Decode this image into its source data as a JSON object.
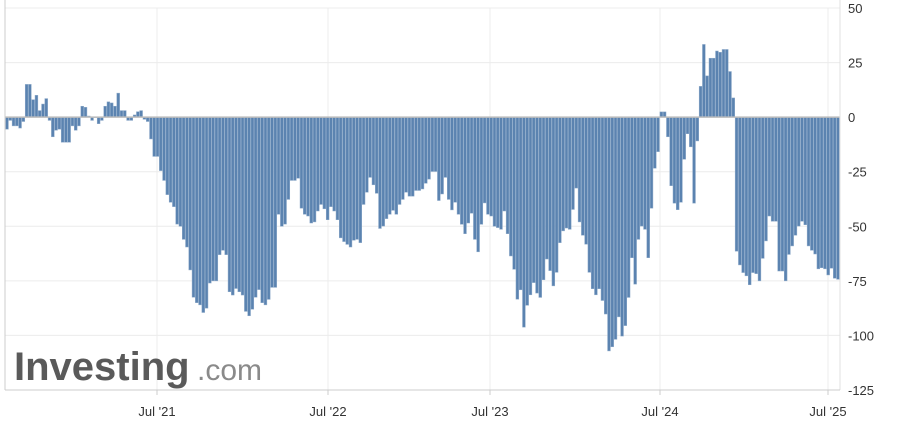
{
  "chart_data": {
    "type": "bar",
    "title": "",
    "xlabel": "",
    "ylabel": "",
    "ylim": [
      -125,
      50
    ],
    "y_ticks": [
      50,
      25,
      0,
      -25,
      -50,
      -75,
      -100,
      -125
    ],
    "x_tick_labels": [
      "Jul '21",
      "Jul '22",
      "Jul '23",
      "Jul '24",
      "Jul '25"
    ],
    "grid": true,
    "y_axis_position": "right",
    "bar_color": "#5b83b0",
    "bar_edge_color": "#8fabca",
    "values": [
      -5.5,
      -1.5,
      -4,
      -4,
      -5,
      -2,
      15,
      15,
      8,
      10,
      3,
      6,
      8.5,
      -1.5,
      -9,
      -6,
      -5.5,
      -11.5,
      -11.5,
      -11.5,
      -4,
      -6,
      -4,
      5,
      4.5,
      0.5,
      -1.5,
      0,
      -3,
      -1.5,
      5,
      7,
      6.5,
      5,
      11,
      3,
      3,
      -1.5,
      -1.5,
      1,
      2.5,
      3,
      -1,
      -2,
      -10,
      -18,
      -18,
      -24.5,
      -29,
      -35.5,
      -39,
      -41,
      -49,
      -50,
      -56,
      -59.5,
      -70,
      -82.5,
      -85,
      -86,
      -89.5,
      -87.5,
      -76,
      -75,
      -75,
      -63,
      -61,
      -63,
      -80,
      -81.5,
      -78.5,
      -80,
      -81.5,
      -89,
      -91,
      -88,
      -82.5,
      -79,
      -85,
      -86,
      -83.5,
      -78,
      -78,
      -44.5,
      -50,
      -49,
      -37.7,
      -29,
      -29,
      -28,
      -41.7,
      -44.5,
      -45.3,
      -48.5,
      -48,
      -43,
      -40,
      -42,
      -47,
      -41,
      -43,
      -47,
      -55.3,
      -57,
      -58.3,
      -59.5,
      -56.4,
      -56,
      -57.5,
      -40,
      -34.4,
      -27.6,
      -31,
      -34.9,
      -51,
      -49.9,
      -46.5,
      -44.5,
      -42.7,
      -44.5,
      -40,
      -37.7,
      -34.4,
      -36.2,
      -36.2,
      -33.6,
      -33.6,
      -32.9,
      -30.3,
      -28.4,
      -24.9,
      -24.9,
      -38.2,
      -35.2,
      -27.6,
      -37.7,
      -42.5,
      -39,
      -44.5,
      -49.1,
      -53.4,
      -48.5,
      -44,
      -56,
      -61.7,
      -49.1,
      -39.3,
      -44.5,
      -45.3,
      -50,
      -50.6,
      -51.4,
      -43,
      -53.4,
      -63.6,
      -69.7,
      -83.4,
      -79.1,
      -96.2,
      -86.2,
      -81.4,
      -75.8,
      -80.6,
      -82.6,
      -74.5,
      -65,
      -70.3,
      -77.3,
      -71.1,
      -57.5,
      -52.1,
      -50.8,
      -51.4,
      -42.3,
      -32.5,
      -48,
      -54.1,
      -58.2,
      -71.1,
      -78.6,
      -81.4,
      -78.6,
      -84,
      -90.2,
      -107.1,
      -105.2,
      -101.8,
      -91.5,
      -100.3,
      -95.5,
      -82.6,
      -64.4,
      -76.5,
      -56,
      -49.9,
      -51.4,
      -64.4,
      -41.7,
      -23.4,
      -15.8,
      2.4,
      2.4,
      -9,
      -31.4,
      -39.4,
      -42.4,
      -39,
      -19.3,
      -7.6,
      -13.6,
      -39.4,
      -10.9,
      14.1,
      33.3,
      18.9,
      27,
      27,
      30.3,
      29.7,
      31,
      31,
      20.9,
      8.8,
      -61.4,
      -67.7,
      -71.2,
      -72.7,
      -76.8,
      -71.2,
      -71.7,
      -75,
      -64.7,
      -56.7,
      -45.3,
      -47.7,
      -47.7,
      -70.5,
      -70.5,
      -75,
      -62.9,
      -59,
      -54.1,
      -49.9,
      -47.7,
      -49.3,
      -59,
      -61,
      -62.7,
      -69.5,
      -69,
      -69.5,
      -72.3,
      -69.2,
      -73.8,
      -74.3
    ]
  },
  "watermark": {
    "brand": "Investing",
    "suffix": ".com"
  }
}
